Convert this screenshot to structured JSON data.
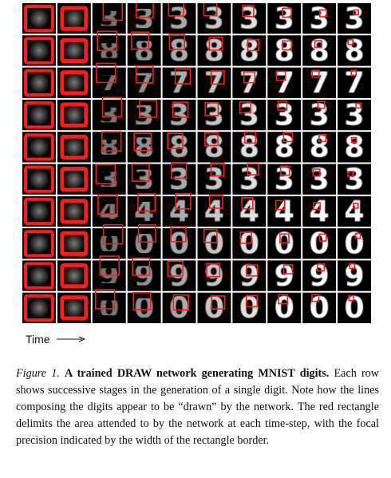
{
  "timeline": {
    "label": "Time"
  },
  "caption": {
    "label": "Figure 1.",
    "title": "A trained DRAW network generating MNIST digits.",
    "body": "Each row shows successive stages in the generation of a single digit. Note how the lines composing the digits appear to be “drawn” by the network. The red rectangle delimits the area attended to by the network at each time-step, with the focal precision indicated by the width of the rectangle border."
  },
  "grid": {
    "columns": 10,
    "rows": [
      {
        "digit": "3"
      },
      {
        "digit": "8"
      },
      {
        "digit": "7"
      },
      {
        "digit": "3"
      },
      {
        "digit": "8"
      },
      {
        "digit": "3"
      },
      {
        "digit": "4"
      },
      {
        "digit": "0"
      },
      {
        "digit": "9"
      },
      {
        "digit": "0"
      }
    ],
    "colors": {
      "attention": "#ff1a1a",
      "background": "#000000",
      "stroke": "#ffffff"
    }
  }
}
